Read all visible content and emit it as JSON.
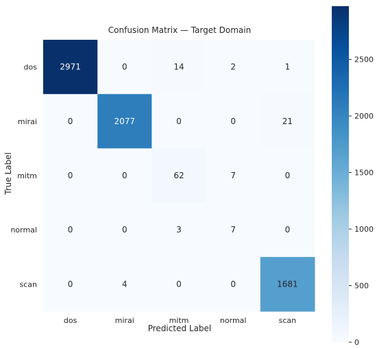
{
  "chart_data": {
    "type": "heatmap",
    "title": "Confusion Matrix — Target Domain",
    "xlabel": "Predicted Label",
    "ylabel": "True Label",
    "x_categories": [
      "dos",
      "mirai",
      "mitm",
      "normal",
      "scan"
    ],
    "y_categories": [
      "dos",
      "mirai",
      "mitm",
      "normal",
      "scan"
    ],
    "values": [
      [
        2971,
        0,
        14,
        2,
        1
      ],
      [
        0,
        2077,
        0,
        0,
        21
      ],
      [
        0,
        0,
        62,
        7,
        0
      ],
      [
        0,
        0,
        3,
        7,
        0
      ],
      [
        0,
        4,
        0,
        0,
        1681
      ]
    ],
    "colormap": "Blues",
    "colorbar": {
      "range": [
        0,
        2971
      ],
      "ticks": [
        0,
        500,
        1000,
        1500,
        2000,
        2500
      ]
    }
  }
}
